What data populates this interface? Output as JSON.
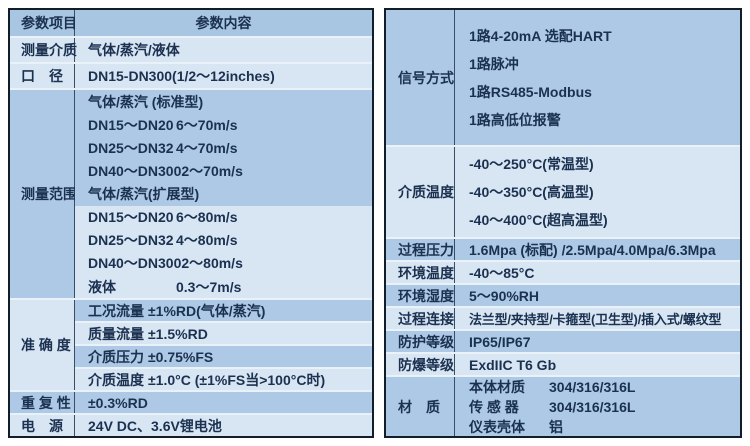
{
  "colors": {
    "band_medium": "#adc9e5",
    "band_light": "#d8e5f3",
    "header_band": "#a8c5e2",
    "outer_border": "#121d2a",
    "text": "#1b3150"
  },
  "left": {
    "header": {
      "c1": "参数项目",
      "c2": "参数内容"
    },
    "medium": {
      "label": "测量介质",
      "value": "气体/蒸汽/液体"
    },
    "diameter": {
      "label": "口　径",
      "value": "DN15-DN300(1/2～12inches)"
    },
    "range": {
      "label": "测量范围",
      "group1": [
        {
          "name": "气体/蒸汽 (标准型)",
          "value": ""
        },
        {
          "name": "DN15～DN20",
          "value": "6～70m/s"
        },
        {
          "name": "DN25～DN32",
          "value": "4～70m/s"
        },
        {
          "name": "DN40～DN300",
          "value": "2～70m/s"
        },
        {
          "name": "气体/蒸汽(扩展型)",
          "value": ""
        }
      ],
      "group2": [
        {
          "name": "DN15～DN20",
          "value": "6～80m/s"
        },
        {
          "name": "DN25～DN32",
          "value": "4～80m/s"
        },
        {
          "name": "DN40～DN300",
          "value": "2～80m/s"
        },
        {
          "name": "液体",
          "value": "0.3～7m/s"
        }
      ]
    },
    "accuracy": {
      "label": "准 确 度",
      "items": [
        {
          "name": "工况流量",
          "value": "±1%RD(气体/蒸汽)"
        },
        {
          "name": "质量流量",
          "value": "±1.5%RD"
        },
        {
          "name": "介质压力",
          "value": "±0.75%FS"
        },
        {
          "name": "介质温度",
          "value": "±1.0°C (±1%FS当>100°C时)"
        }
      ]
    },
    "repeat": {
      "label": "重 复 性",
      "value": "±0.3%RD"
    },
    "power": {
      "label": "电　源",
      "value": "24V DC、3.6V锂电池"
    }
  },
  "right": {
    "signal": {
      "label": "信号方式",
      "lines": [
        "1路4-20mA 选配HART",
        "1路脉冲",
        "1路RS485-Modbus",
        "1路高低位报警"
      ]
    },
    "mtemp": {
      "label": "介质温度",
      "lines": [
        "-40～250°C(常温型)",
        "-40～350°C(高温型)",
        "-40～400°C(超高温型)"
      ]
    },
    "pressure": {
      "label": "过程压力",
      "value": "1.6Mpa (标配) /2.5Mpa/4.0Mpa/6.3Mpa"
    },
    "atemp": {
      "label": "环境温度",
      "value": "-40～85°C"
    },
    "humidity": {
      "label": "环境湿度",
      "value": "5～90%RH"
    },
    "connection": {
      "label": "过程连接",
      "value": "法兰型/夹持型/卡箍型(卫生型)/插入式/螺纹型"
    },
    "protection": {
      "label": "防护等级",
      "value": "IP65/IP67"
    },
    "explosion": {
      "label": "防爆等级",
      "value": "ExdIIC T6 Gb"
    },
    "material": {
      "label": "材　质",
      "items": [
        {
          "name": "本体材质",
          "value": "304/316/316L"
        },
        {
          "name": "传 感 器",
          "value": "304/316/316L"
        },
        {
          "name": "仪表壳体",
          "value": "铝"
        }
      ]
    }
  }
}
